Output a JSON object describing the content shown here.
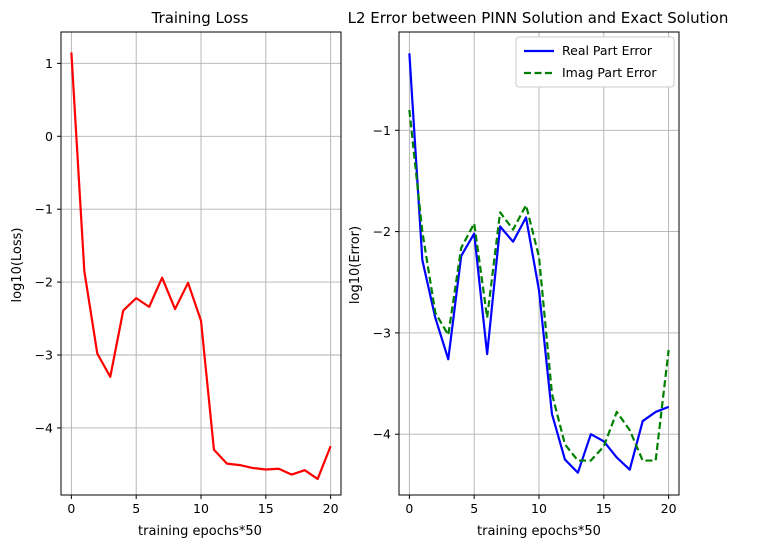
{
  "chart_data": [
    {
      "type": "line",
      "title": "Training Loss",
      "xlabel": "training epochs*50",
      "ylabel": "log10(Loss)",
      "xlim": [
        -0.8,
        20.8
      ],
      "ylim": [
        -4.92,
        1.43
      ],
      "xticks": [
        0,
        5,
        10,
        15,
        20
      ],
      "yticks": [
        1,
        0,
        -1,
        -2,
        -3,
        -4
      ],
      "xtick_labels": [
        "0",
        "5",
        "10",
        "15",
        "20"
      ],
      "ytick_labels": [
        "1",
        "0",
        "−1",
        "−2",
        "−3",
        "−4"
      ],
      "grid": true,
      "series": [
        {
          "color": "#ff0000",
          "style": "solid",
          "x": [
            0,
            1,
            2,
            3,
            4,
            5,
            6,
            7,
            8,
            9,
            10,
            11,
            12,
            13,
            14,
            15,
            16,
            17,
            18,
            19,
            20
          ],
          "y": [
            1.15,
            -1.85,
            -2.98,
            -3.3,
            -2.39,
            -2.22,
            -2.34,
            -1.94,
            -2.37,
            -2.01,
            -2.53,
            -4.3,
            -4.49,
            -4.51,
            -4.55,
            -4.57,
            -4.56,
            -4.64,
            -4.58,
            -4.7,
            -4.25
          ]
        }
      ]
    },
    {
      "type": "line",
      "title": "L2 Error between PINN Solution and Exact Solution",
      "xlabel": "training epochs*50",
      "ylabel": "log10(Error)",
      "xlim": [
        -0.8,
        20.8
      ],
      "ylim": [
        -4.6,
        -0.03
      ],
      "xticks": [
        0,
        5,
        10,
        15,
        20
      ],
      "yticks": [
        -1,
        -2,
        -3,
        -4
      ],
      "xtick_labels": [
        "0",
        "5",
        "10",
        "15",
        "20"
      ],
      "ytick_labels": [
        "−1",
        "−2",
        "−3",
        "−4"
      ],
      "grid": true,
      "legend": "top-right",
      "series": [
        {
          "name": "Real Part Error",
          "color": "#0000ff",
          "style": "solid",
          "x": [
            0,
            1,
            2,
            3,
            4,
            5,
            6,
            7,
            8,
            9,
            10,
            11,
            12,
            13,
            14,
            15,
            16,
            17,
            18,
            19,
            20
          ],
          "y": [
            -0.24,
            -2.28,
            -2.85,
            -3.26,
            -2.24,
            -2.02,
            -3.21,
            -1.95,
            -2.1,
            -1.86,
            -2.58,
            -3.8,
            -4.25,
            -4.38,
            -4.0,
            -4.07,
            -4.23,
            -4.35,
            -3.87,
            -3.78,
            -3.73
          ]
        },
        {
          "name": "Imag Part Error",
          "color": "#008000",
          "style": "dashed",
          "x": [
            0,
            1,
            2,
            3,
            4,
            5,
            6,
            7,
            8,
            9,
            10,
            11,
            12,
            13,
            14,
            15,
            16,
            17,
            18,
            19,
            20
          ],
          "y": [
            -0.8,
            -2.0,
            -2.8,
            -3.02,
            -2.16,
            -1.92,
            -2.85,
            -1.81,
            -1.98,
            -1.74,
            -2.25,
            -3.6,
            -4.1,
            -4.26,
            -4.26,
            -4.12,
            -3.78,
            -3.96,
            -4.26,
            -4.26,
            -3.17
          ]
        }
      ]
    }
  ]
}
